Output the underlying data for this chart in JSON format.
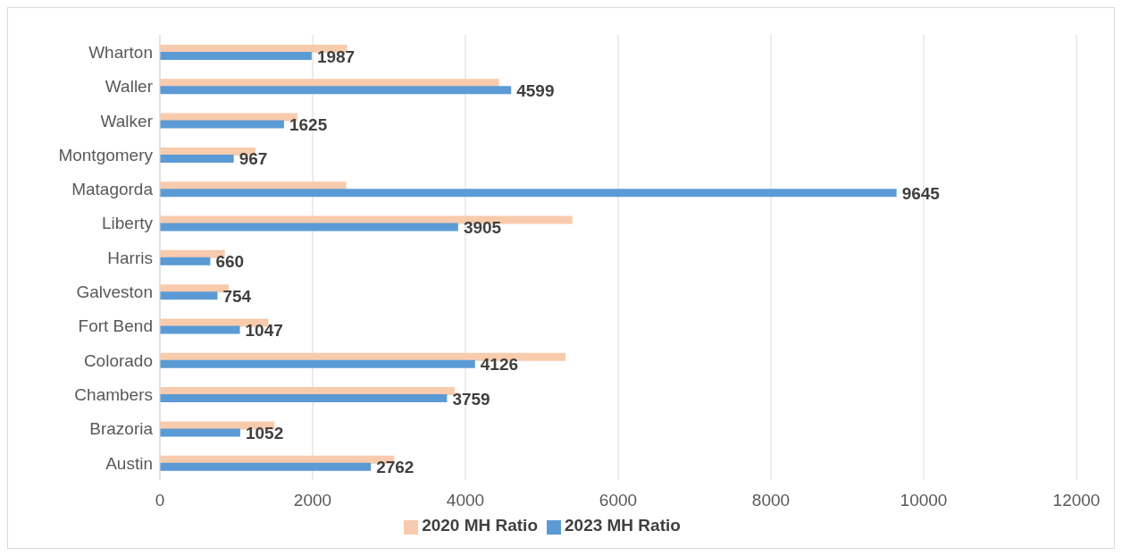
{
  "chart_data": {
    "type": "bar",
    "orientation": "horizontal",
    "categories": [
      "Wharton",
      "Waller",
      "Walker",
      "Montgomery",
      "Matagorda",
      "Liberty",
      "Harris",
      "Galveston",
      "Fort Bend",
      "Colorado",
      "Chambers",
      "Brazoria",
      "Austin"
    ],
    "series": [
      {
        "name": "2020 MH Ratio",
        "color": "#f8cbad",
        "values": [
          2450,
          4440,
          1800,
          1250,
          2440,
          5400,
          850,
          900,
          1420,
          5310,
          3860,
          1500,
          3070
        ]
      },
      {
        "name": "2023 MH Ratio",
        "color": "#5b9bd5",
        "values": [
          1987,
          4599,
          1625,
          967,
          9645,
          3905,
          660,
          754,
          1047,
          4126,
          3759,
          1052,
          2762
        ],
        "value_labels": [
          "1987",
          "4599",
          "1625",
          "967",
          "9645",
          "3905",
          "660",
          "754",
          "1047",
          "4126",
          "3759",
          "1052",
          "2762"
        ]
      }
    ],
    "xlim": [
      0,
      12000
    ],
    "xticks": [
      0,
      2000,
      4000,
      6000,
      8000,
      10000,
      12000
    ],
    "grid": "x",
    "legend": "bottom"
  }
}
